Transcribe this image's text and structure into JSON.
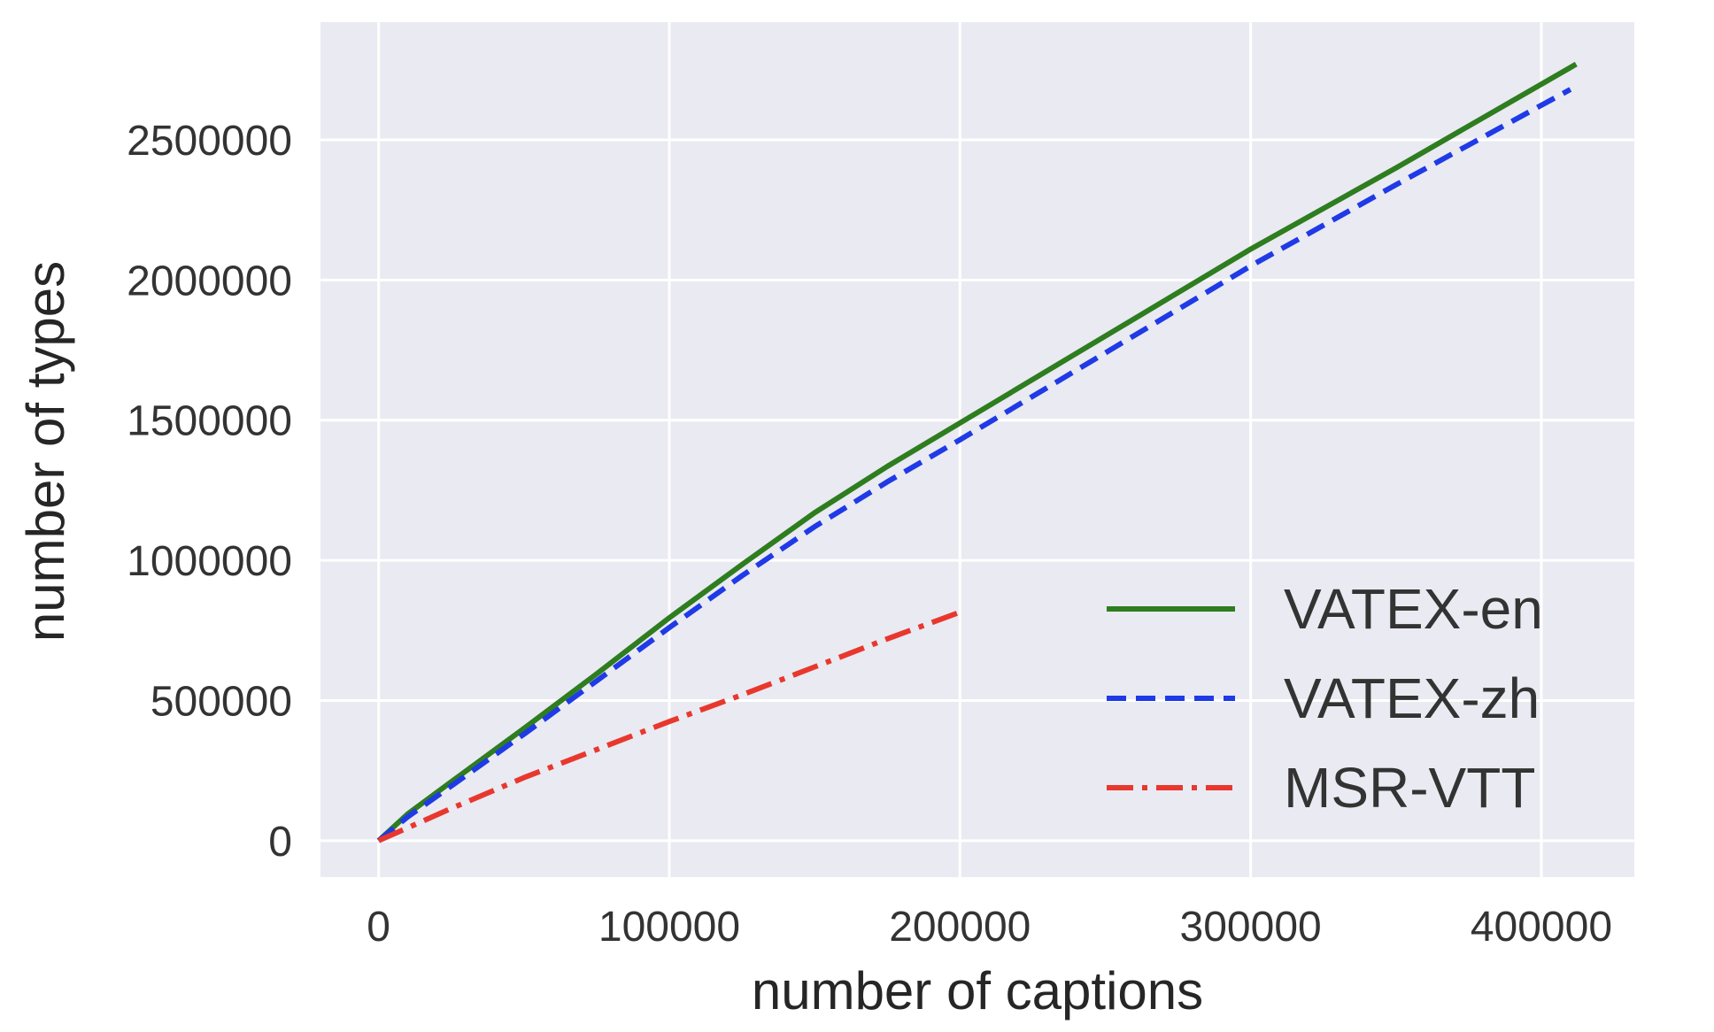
{
  "chart_data": {
    "type": "line",
    "xlabel": "number of captions",
    "ylabel": "number of types",
    "xlim": [
      -20000,
      432000
    ],
    "ylim": [
      -130000,
      2920000
    ],
    "xticks": [
      0,
      100000,
      200000,
      300000,
      400000
    ],
    "yticks": [
      0,
      500000,
      1000000,
      1500000,
      2000000,
      2500000
    ],
    "grid": true,
    "legend_position": "lower-right",
    "background": "#eaeaf2",
    "grid_color": "#ffffff",
    "series": [
      {
        "name": "VATEX-en",
        "color": "#2e7d1f",
        "dash": "solid",
        "x": [
          0,
          10000,
          25000,
          50000,
          75000,
          100000,
          125000,
          150000,
          175000,
          200000,
          250000,
          300000,
          350000,
          412000
        ],
        "y": [
          0,
          95000,
          210000,
          400000,
          595000,
          795000,
          985000,
          1170000,
          1335000,
          1490000,
          1800000,
          2110000,
          2400000,
          2770000
        ]
      },
      {
        "name": "VATEX-zh",
        "color": "#1f3ae6",
        "dash": "dashed",
        "x": [
          0,
          10000,
          25000,
          50000,
          75000,
          100000,
          125000,
          150000,
          175000,
          200000,
          250000,
          300000,
          350000,
          410000
        ],
        "y": [
          0,
          85000,
          195000,
          380000,
          570000,
          760000,
          945000,
          1120000,
          1280000,
          1430000,
          1740000,
          2050000,
          2340000,
          2680000
        ]
      },
      {
        "name": "MSR-VTT",
        "color": "#e8382e",
        "dash": "dashdot",
        "x": [
          0,
          25000,
          50000,
          75000,
          100000,
          125000,
          150000,
          175000,
          200000
        ],
        "y": [
          0,
          115000,
          225000,
          325000,
          425000,
          520000,
          620000,
          720000,
          815000
        ]
      }
    ]
  }
}
